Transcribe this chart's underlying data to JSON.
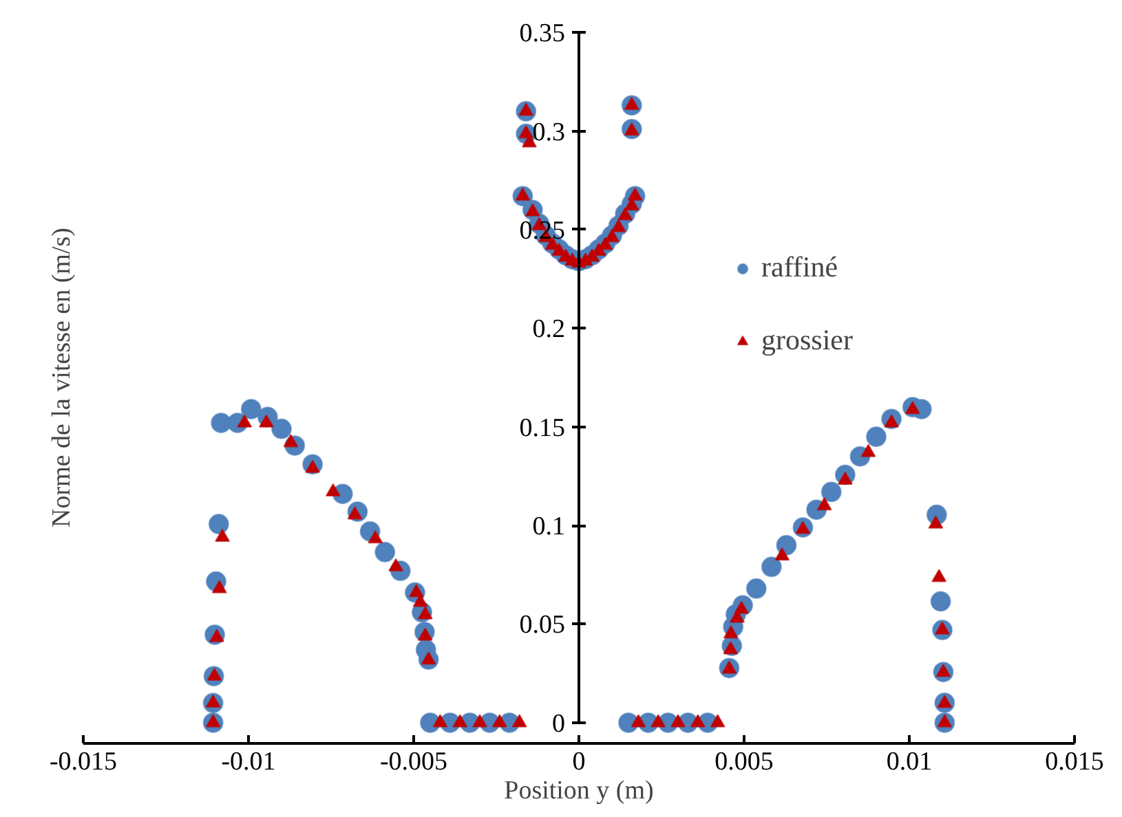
{
  "chart_data": {
    "type": "scatter",
    "xlabel": "Position y (m)",
    "ylabel": "Norme de la vitesse en (m/s)",
    "xlim": [
      -0.015,
      0.015
    ],
    "xticks": [
      -0.015,
      -0.01,
      -0.005,
      0,
      0.005,
      0.01,
      0.015
    ],
    "ylim": [
      0,
      0.35
    ],
    "yticks": [
      0,
      0.05,
      0.1,
      0.15,
      0.2,
      0.25,
      0.3,
      0.35
    ],
    "grid": false,
    "legend": "right",
    "series": [
      {
        "name": "raffiné",
        "color": "#4f81bd",
        "marker": "circle",
        "x": [
          -0.01107,
          -0.01107,
          -0.01105,
          -0.01102,
          -0.01098,
          -0.0109,
          -0.01083,
          -0.01033,
          -0.00992,
          -0.00942,
          -0.009,
          -0.0086,
          -0.00806,
          -0.00715,
          -0.0067,
          -0.00632,
          -0.00587,
          -0.0054,
          -0.00496,
          -0.00475,
          -0.00467,
          -0.00463,
          -0.00455,
          -0.0045,
          -0.0039,
          -0.0033,
          -0.0027,
          -0.0021,
          -0.0016,
          -0.0016,
          -0.0017,
          -0.0014,
          -0.0012,
          -0.001,
          -0.0008,
          -0.0006,
          -0.0004,
          -0.0002,
          0,
          0.0002,
          0.0004,
          0.0006,
          0.0008,
          0.001,
          0.0012,
          0.0014,
          0.0016,
          0.0017,
          0.0016,
          0.0016,
          0.0015,
          0.0021,
          0.0027,
          0.0033,
          0.0039,
          0.00455,
          0.00463,
          0.00467,
          0.00475,
          0.00496,
          0.00537,
          0.00583,
          0.00628,
          0.00678,
          0.00719,
          0.00764,
          0.00806,
          0.00851,
          0.009,
          0.00946,
          0.0101,
          0.01037,
          0.01083,
          0.01095,
          0.011,
          0.01103,
          0.01107,
          0.01107
        ],
        "values": [
          0,
          0.01,
          0.0236,
          0.0446,
          0.0716,
          0.1007,
          0.152,
          0.152,
          0.159,
          0.155,
          0.149,
          0.1405,
          0.131,
          0.116,
          0.107,
          0.097,
          0.0865,
          0.077,
          0.066,
          0.056,
          0.046,
          0.037,
          0.032,
          0,
          0,
          0,
          0,
          0,
          0.31,
          0.2986,
          0.267,
          0.26,
          0.253,
          0.247,
          0.243,
          0.24,
          0.237,
          0.235,
          0.234,
          0.235,
          0.237,
          0.24,
          0.243,
          0.247,
          0.252,
          0.258,
          0.263,
          0.267,
          0.313,
          0.301,
          0,
          0,
          0,
          0,
          0,
          0.0277,
          0.039,
          0.0486,
          0.055,
          0.0595,
          0.068,
          0.079,
          0.09,
          0.099,
          0.108,
          0.117,
          0.1257,
          0.135,
          0.145,
          0.154,
          0.16,
          0.159,
          0.1054,
          0.0615,
          0.047,
          0.0257,
          0.0101,
          0
        ]
      },
      {
        "name": "grossier",
        "color": "#c00000",
        "marker": "triangle",
        "x": [
          -0.01107,
          -0.01107,
          -0.01103,
          -0.01096,
          -0.01088,
          -0.01079,
          -0.01012,
          -0.00946,
          -0.00872,
          -0.00806,
          -0.00744,
          -0.00678,
          -0.00616,
          -0.00554,
          -0.00492,
          -0.0048,
          -0.00465,
          -0.00465,
          -0.00455,
          -0.0042,
          -0.0036,
          -0.003,
          -0.0024,
          -0.0018,
          -0.0016,
          -0.0016,
          -0.0015,
          -0.0017,
          -0.0014,
          -0.0012,
          -0.001,
          -0.0008,
          -0.0006,
          -0.0004,
          -0.0002,
          0,
          0.0002,
          0.0004,
          0.0006,
          0.0008,
          0.001,
          0.0012,
          0.0014,
          0.0016,
          0.0017,
          0.0016,
          0.0016,
          0.0018,
          0.0024,
          0.003,
          0.0036,
          0.0042,
          0.00455,
          0.00459,
          0.0046,
          0.00479,
          0.00492,
          0.00615,
          0.00678,
          0.00743,
          0.00806,
          0.00876,
          0.00946,
          0.0101,
          0.0108,
          0.0109,
          0.011,
          0.01103,
          0.01107,
          0.01107
        ],
        "values": [
          0,
          0.01,
          0.0236,
          0.0432,
          0.068,
          0.094,
          0.152,
          0.152,
          0.142,
          0.129,
          0.117,
          0.1054,
          0.0932,
          0.079,
          0.066,
          0.061,
          0.0547,
          0.0439,
          0.0318,
          0,
          0,
          0,
          0,
          0,
          0.31,
          0.2986,
          0.294,
          0.267,
          0.259,
          0.252,
          0.246,
          0.242,
          0.239,
          0.236,
          0.234,
          0.233,
          0.234,
          0.236,
          0.239,
          0.242,
          0.246,
          0.251,
          0.257,
          0.262,
          0.267,
          0.313,
          0.3,
          0,
          0,
          0,
          0,
          0,
          0.0272,
          0.037,
          0.045,
          0.053,
          0.0575,
          0.0845,
          0.098,
          0.11,
          0.123,
          0.137,
          0.152,
          0.1588,
          0.1007,
          0.0736,
          0.047,
          0.0255,
          0.0098,
          0
        ]
      }
    ]
  }
}
